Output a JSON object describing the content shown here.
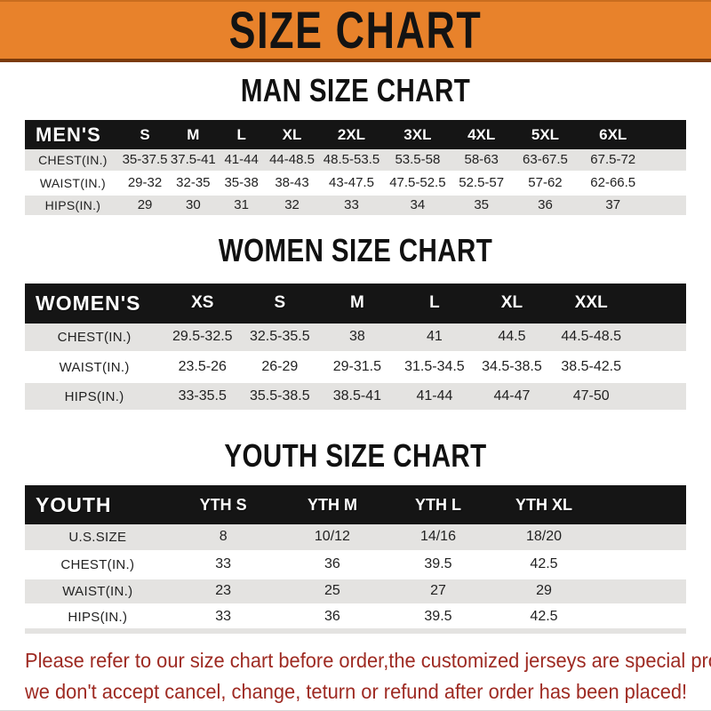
{
  "banner": {
    "title": "SIZE CHART"
  },
  "colors": {
    "banner_orange": "#E8822B",
    "header_bar_black": "#151515",
    "row_gray": "#E4E3E1",
    "notice_red": "#9E2A22"
  },
  "chart_data": [
    {
      "type": "table",
      "title": "MAN SIZE CHART",
      "header_label": "MEN'S",
      "columns": [
        "S",
        "M",
        "L",
        "XL",
        "2XL",
        "3XL",
        "4XL",
        "5XL",
        "6XL"
      ],
      "rows": [
        {
          "label": "CHEST(IN.)",
          "values": [
            "35-37.5",
            "37.5-41",
            "41-44",
            "44-48.5",
            "48.5-53.5",
            "53.5-58",
            "58-63",
            "63-67.5",
            "67.5-72"
          ]
        },
        {
          "label": "WAIST(IN.)",
          "values": [
            "29-32",
            "32-35",
            "35-38",
            "38-43",
            "43-47.5",
            "47.5-52.5",
            "52.5-57",
            "57-62",
            "62-66.5"
          ]
        },
        {
          "label": "HIPS(IN.)",
          "values": [
            "29",
            "30",
            "31",
            "32",
            "33",
            "34",
            "35",
            "36",
            "37"
          ]
        }
      ]
    },
    {
      "type": "table",
      "title": "WOMEN SIZE CHART",
      "header_label": "WOMEN'S",
      "columns": [
        "XS",
        "S",
        "M",
        "L",
        "XL",
        "XXL"
      ],
      "rows": [
        {
          "label": "CHEST(IN.)",
          "values": [
            "29.5-32.5",
            "32.5-35.5",
            "38",
            "41",
            "44.5",
            "44.5-48.5"
          ]
        },
        {
          "label": "WAIST(IN.)",
          "values": [
            "23.5-26",
            "26-29",
            "29-31.5",
            "31.5-34.5",
            "34.5-38.5",
            "38.5-42.5"
          ]
        },
        {
          "label": "HIPS(IN.)",
          "values": [
            "33-35.5",
            "35.5-38.5",
            "38.5-41",
            "41-44",
            "44-47",
            "47-50"
          ]
        }
      ]
    },
    {
      "type": "table",
      "title": "YOUTH SIZE CHART",
      "header_label": "YOUTH",
      "columns": [
        "YTH S",
        "YTH M",
        "YTH L",
        "YTH XL"
      ],
      "rows": [
        {
          "label": "U.S.SIZE",
          "values": [
            "8",
            "10/12",
            "14/16",
            "18/20"
          ]
        },
        {
          "label": "CHEST(IN.)",
          "values": [
            "33",
            "36",
            "39.5",
            "42.5"
          ]
        },
        {
          "label": "WAIST(IN.)",
          "values": [
            "23",
            "25",
            "27",
            "29"
          ]
        },
        {
          "label": "HIPS(IN.)",
          "values": [
            "33",
            "36",
            "39.5",
            "42.5"
          ]
        }
      ]
    }
  ],
  "footer": {
    "line1": "Please refer to our size chart before order,the customized jerseys are special products,",
    "line2": "we don't accept cancel, change, teturn or refund after order has been placed!"
  }
}
